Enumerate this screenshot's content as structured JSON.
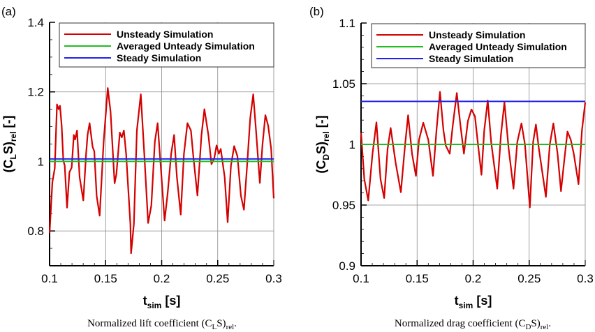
{
  "chart_data": [
    {
      "type": "line",
      "panel_label": "(a)",
      "xlabel": {
        "main": "t",
        "sub": "sim",
        "post": " [s]"
      },
      "ylabel": {
        "pre": "(C",
        "sub1": "L",
        "mid": "S)",
        "sub2": "rel",
        "post": " [-]"
      },
      "caption": {
        "pre": "Normalized lift coefficient (C",
        "sub1": "L",
        "mid": "S)",
        "sub2": "rel",
        "post": "."
      },
      "xlim": [
        0.1,
        0.3
      ],
      "ylim": [
        0.7,
        1.4
      ],
      "xticks": [
        0.1,
        0.15,
        0.2,
        0.25,
        0.3
      ],
      "xtick_labels": [
        "0.1",
        "0.15",
        "0.2",
        "0.25",
        "0.3"
      ],
      "yticks": [
        0.8,
        1.0,
        1.2,
        1.4
      ],
      "ytick_labels": [
        "0.8",
        "1",
        "1.2",
        "1.4"
      ],
      "grid": true,
      "legend_placement": "top",
      "series": [
        {
          "name": "Unsteady Simulation",
          "color": "#d40000",
          "x": [
            0.1,
            0.1025,
            0.1046,
            0.1066,
            0.1081,
            0.1093,
            0.1108,
            0.1123,
            0.1135,
            0.1156,
            0.1177,
            0.1197,
            0.1216,
            0.1228,
            0.1245,
            0.1268,
            0.1301,
            0.1326,
            0.1339,
            0.1357,
            0.1384,
            0.1399,
            0.142,
            0.1447,
            0.1482,
            0.1519,
            0.1544,
            0.158,
            0.1596,
            0.1627,
            0.1644,
            0.1663,
            0.1683,
            0.1721,
            0.1727,
            0.1752,
            0.1779,
            0.1814,
            0.1845,
            0.1879,
            0.1908,
            0.1939,
            0.1964,
            0.1991,
            0.2026,
            0.2053,
            0.2085,
            0.2111,
            0.2136,
            0.217,
            0.2199,
            0.223,
            0.2261,
            0.2282,
            0.2319,
            0.2355,
            0.2381,
            0.2417,
            0.2444,
            0.2469,
            0.249,
            0.251,
            0.2527,
            0.2562,
            0.2589,
            0.2618,
            0.2647,
            0.2676,
            0.2707,
            0.2734,
            0.2764,
            0.279,
            0.2817,
            0.2842,
            0.2876,
            0.29,
            0.2925,
            0.295,
            0.2977,
            0.3
          ],
          "y": [
            0.794,
            0.94,
            0.98,
            1.164,
            1.15,
            1.16,
            1.103,
            1.002,
            0.988,
            0.867,
            0.969,
            0.982,
            1.076,
            1.063,
            1.089,
            0.955,
            0.888,
            1.022,
            1.076,
            1.11,
            1.042,
            1.029,
            0.901,
            0.844,
            1.056,
            1.211,
            1.143,
            0.937,
            0.964,
            1.083,
            1.069,
            1.089,
            1.022,
            0.82,
            0.736,
            0.82,
            1.089,
            1.193,
            1.022,
            0.823,
            0.873,
            1.056,
            1.11,
            0.988,
            0.83,
            0.907,
            1.022,
            1.076,
            0.955,
            0.847,
            1.022,
            1.11,
            1.089,
            1.015,
            0.902,
            1.076,
            1.15,
            1.076,
            0.992,
            1.009,
            1.046,
            1.022,
            1.036,
            0.955,
            0.825,
            0.988,
            1.044,
            1.015,
            0.901,
            0.861,
            0.996,
            1.124,
            1.193,
            1.089,
            0.938,
            1.049,
            1.133,
            1.103,
            1.036,
            0.894
          ]
        },
        {
          "name": "Averaged Unteady Simulation",
          "color": "#22bb22",
          "x": [
            0.1,
            0.3
          ],
          "y": [
            1.0,
            1.0
          ]
        },
        {
          "name": "Steady Simulation",
          "color": "#2222ee",
          "x": [
            0.1,
            0.3
          ],
          "y": [
            1.007,
            1.007
          ]
        }
      ]
    },
    {
      "type": "line",
      "panel_label": "(b)",
      "xlabel": {
        "main": "t",
        "sub": "sim",
        "post": " [s]"
      },
      "ylabel": {
        "pre": "(C",
        "sub1": "D",
        "mid": "S)",
        "sub2": "rel",
        "post": " [-]"
      },
      "caption": {
        "pre": "Normalized drag coefficient (C",
        "sub1": "D",
        "mid": "S)",
        "sub2": "rel",
        "post": "."
      },
      "xlim": [
        0.1,
        0.3
      ],
      "ylim": [
        0.9,
        1.1
      ],
      "xticks": [
        0.1,
        0.15,
        0.2,
        0.25,
        0.3
      ],
      "xtick_labels": [
        "0.1",
        "0.15",
        "0.2",
        "0.25",
        "0.3"
      ],
      "yticks": [
        0.9,
        0.95,
        1.0,
        1.05,
        1.1
      ],
      "ytick_labels": [
        "0.9",
        "0.95",
        "1",
        "1.05",
        "1.1"
      ],
      "grid": true,
      "legend_placement": "top",
      "series": [
        {
          "name": "Unsteady Simulation",
          "color": "#d40000",
          "x": [
            0.1,
            0.1029,
            0.1064,
            0.1102,
            0.1137,
            0.1174,
            0.1206,
            0.1237,
            0.1264,
            0.1309,
            0.1355,
            0.1393,
            0.142,
            0.1455,
            0.149,
            0.1517,
            0.1555,
            0.16,
            0.1642,
            0.1673,
            0.1704,
            0.1735,
            0.1756,
            0.1791,
            0.1818,
            0.1854,
            0.1887,
            0.1918,
            0.1953,
            0.1985,
            0.2016,
            0.2041,
            0.2074,
            0.2099,
            0.213,
            0.2161,
            0.2215,
            0.2248,
            0.2279,
            0.2317,
            0.236,
            0.2394,
            0.2431,
            0.2462,
            0.2506,
            0.2535,
            0.256,
            0.2587,
            0.2649,
            0.2684,
            0.2716,
            0.2753,
            0.2784,
            0.2815,
            0.2842,
            0.2871,
            0.2898,
            0.294,
            0.2971,
            0.3
          ],
          "y": [
            1.0096,
            0.9712,
            0.9538,
            0.9923,
            1.0181,
            0.9712,
            0.9558,
            0.9962,
            1.0135,
            0.9846,
            0.9606,
            1.0,
            1.024,
            0.9923,
            0.974,
            1.0038,
            1.0178,
            1.0038,
            0.974,
            1.0115,
            1.0433,
            1.0115,
            0.999,
            0.9923,
            1.0154,
            1.0423,
            1.0154,
            0.9923,
            1.0192,
            1.0288,
            1.0231,
            1.0019,
            0.975,
            1.0115,
            1.0362,
            1.0019,
            0.9635,
            1.0077,
            1.0346,
            0.9962,
            0.9635,
            1.0019,
            1.0173,
            1.0,
            0.9481,
            1.0019,
            1.0163,
            0.9962,
            0.9567,
            1.0,
            1.0173,
            0.9923,
            0.9615,
            0.9885,
            1.0106,
            1.0038,
            0.9923,
            0.9673,
            1.0115,
            1.0346
          ]
        },
        {
          "name": "Averaged Unteady Simulation",
          "color": "#22bb22",
          "x": [
            0.1,
            0.3
          ],
          "y": [
            1.0,
            1.0
          ]
        },
        {
          "name": "Steady Simulation",
          "color": "#2222ee",
          "x": [
            0.1,
            0.3
          ],
          "y": [
            1.0354,
            1.0354
          ]
        }
      ]
    }
  ]
}
